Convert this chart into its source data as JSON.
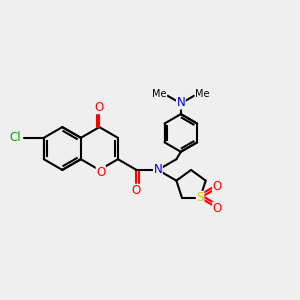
{
  "bg_color": "#efefef",
  "bond_color": "#000000",
  "bond_lw": 1.5,
  "atom_colors": {
    "O": "#ff0000",
    "N": "#0000cc",
    "S": "#cccc00",
    "Cl": "#00aa00",
    "C": "#000000"
  },
  "fs": 8.5,
  "BL": 0.72
}
